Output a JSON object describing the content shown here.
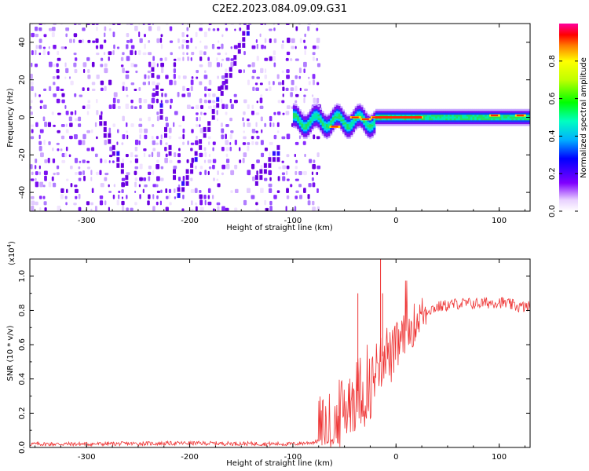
{
  "title": "C2E2.2023.084.09.09.G31",
  "chart_data": [
    {
      "type": "heatmap",
      "xlabel": "Height of straight line (km)",
      "ylabel": "Frequency (Hz)",
      "xlim": [
        -355,
        130
      ],
      "ylim": [
        -50,
        50
      ],
      "x_ticks": [
        -300,
        -200,
        -100,
        0,
        100
      ],
      "y_ticks": [
        -40,
        -20,
        0,
        20,
        40
      ],
      "colorbar": {
        "label": "Normalized spectral amplitude",
        "range": [
          0,
          1
        ],
        "ticks": [
          0.0,
          0.2,
          0.4,
          0.6,
          0.8
        ]
      }
    },
    {
      "type": "line",
      "xlabel": "Height of straight line (km)",
      "ylabel": "SNR (10 * v/v)",
      "y_multiplier": "(x10",
      "y_multiplier_exp": "4",
      "y_multiplier_close": ")",
      "xlim": [
        -355,
        130
      ],
      "ylim": [
        0,
        1.1
      ],
      "x_ticks": [
        -300,
        -200,
        -100,
        0,
        100
      ],
      "y_ticks": [
        0.0,
        0.2,
        0.4,
        0.6,
        0.8,
        1.0
      ],
      "series": [
        {
          "name": "SNR",
          "color": "#ee3333",
          "x": [
            -355,
            -300,
            -200,
            -100,
            -80,
            -70,
            -60,
            -50,
            -45,
            -40,
            -35,
            -30,
            -25,
            -20,
            -15,
            -10,
            -5,
            0,
            5,
            10,
            15,
            20,
            25,
            30,
            40,
            50,
            60,
            80,
            100,
            120,
            130
          ],
          "y": [
            0.02,
            0.02,
            0.025,
            0.02,
            0.03,
            0.05,
            0.1,
            0.22,
            0.3,
            0.3,
            0.35,
            0.3,
            0.35,
            0.45,
            0.5,
            0.58,
            0.52,
            0.58,
            0.62,
            0.66,
            0.7,
            0.74,
            0.78,
            0.8,
            0.82,
            0.83,
            0.84,
            0.84,
            0.85,
            0.82,
            0.82
          ]
        }
      ]
    }
  ]
}
